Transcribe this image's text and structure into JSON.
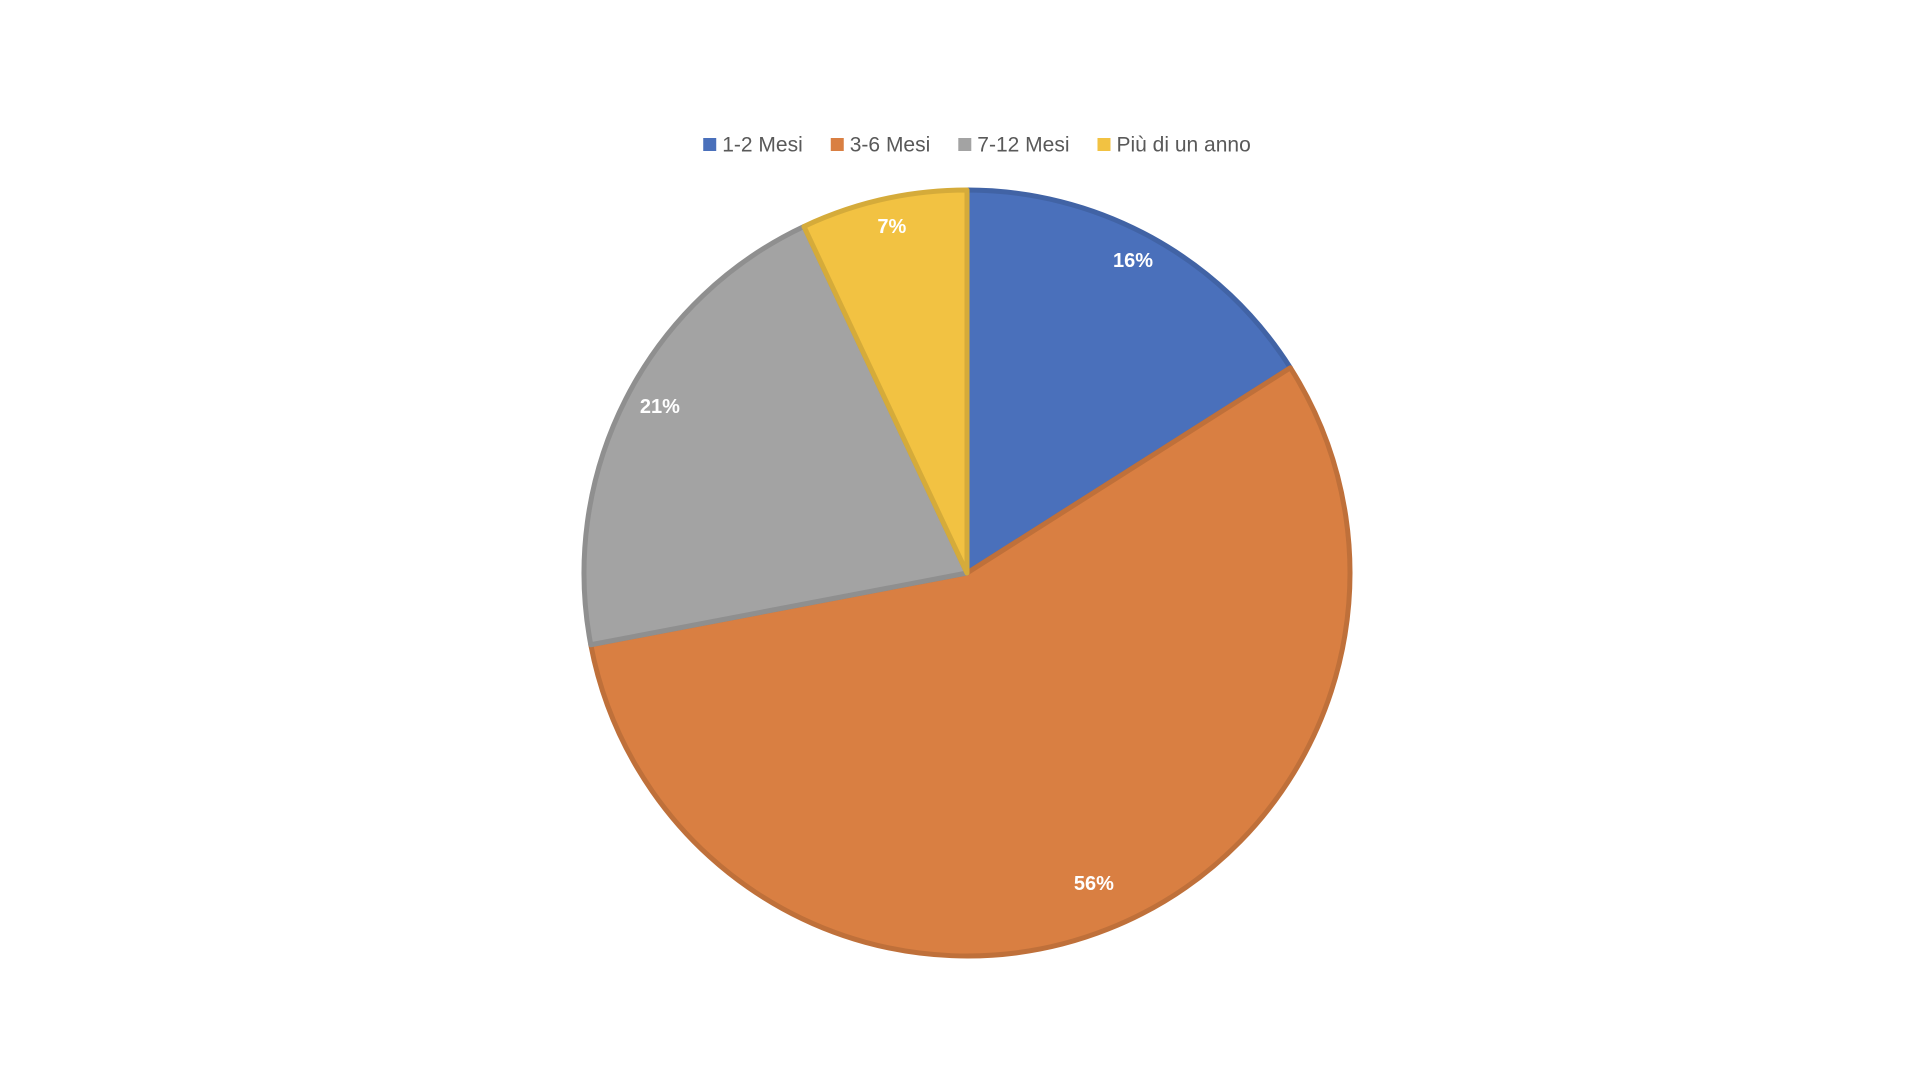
{
  "chart_data": {
    "type": "pie",
    "categories": [
      "1-2 Mesi",
      "3-6 Mesi",
      "7-12 Mesi",
      "Più di un anno"
    ],
    "values": [
      16,
      56,
      21,
      7
    ],
    "value_labels": [
      "16%",
      "56%",
      "21%",
      "7%"
    ],
    "colors": [
      "#4a70bb",
      "#d97f42",
      "#a3a3a3",
      "#f2c242"
    ],
    "legend": "top"
  }
}
